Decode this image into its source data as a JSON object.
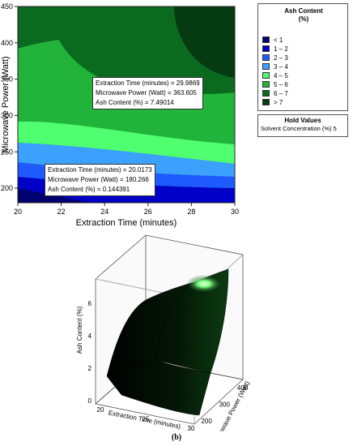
{
  "chart_data": [
    {
      "type": "contour",
      "xlabel": "Extraction Time (minutes)",
      "ylabel": "Microwave Power (Watt)",
      "xlim": [
        20,
        30
      ],
      "ylim": [
        180,
        450
      ],
      "x_ticks": [
        "20",
        "22",
        "24",
        "26",
        "28",
        "30"
      ],
      "y_ticks": [
        "200",
        "250",
        "300",
        "350",
        "400",
        "450"
      ],
      "legend": {
        "title": "Ash Content (%)",
        "placement": "right",
        "levels": [
          {
            "label": "< 1",
            "color": "#00006e"
          },
          {
            "label": "1 – 2",
            "color": "#0000c8"
          },
          {
            "label": "2 – 3",
            "color": "#1e5aff"
          },
          {
            "label": "3 – 4",
            "color": "#3ca0ff"
          },
          {
            "label": "4 – 5",
            "color": "#50ff70"
          },
          {
            "label": "5 – 6",
            "color": "#21b33a"
          },
          {
            "label": "6 – 7",
            "color": "#0a6a1e"
          },
          {
            "label": "> 7",
            "color": "#063a10"
          }
        ]
      },
      "hold_values": {
        "title": "Hold Values",
        "text": "Solvent Concentration (%) 5"
      },
      "annotations": [
        {
          "x": 29.9869,
          "y": 363.605,
          "z": 7.49014,
          "lines": [
            "Extraction Time (minutes) = 29.9869",
            "Microwave Power (Watt) = 363.605",
            "Ash Content (%) = 7.49014"
          ]
        },
        {
          "x": 20.0173,
          "y": 180.266,
          "z": 0.144391,
          "lines": [
            "Extraction Time (minutes) = 20.0173",
            "Microwave Power (Watt) = 180.266",
            "Ash Content (%) = 0.144391"
          ]
        }
      ]
    },
    {
      "type": "surface",
      "xlabel": "Extraction Time (minutes)",
      "ylabel": "Microwave Power (Watt)",
      "zlabel": "Ash Content (%)",
      "x_ticks": [
        "20",
        "25",
        "30"
      ],
      "y_ticks": [
        "200",
        "300",
        "400"
      ],
      "z_ticks": [
        "0",
        "2",
        "4",
        "6"
      ],
      "xlim": [
        20,
        30
      ],
      "ylim": [
        180,
        450
      ],
      "zlim": [
        0,
        7.5
      ],
      "caption": "(b)"
    }
  ]
}
